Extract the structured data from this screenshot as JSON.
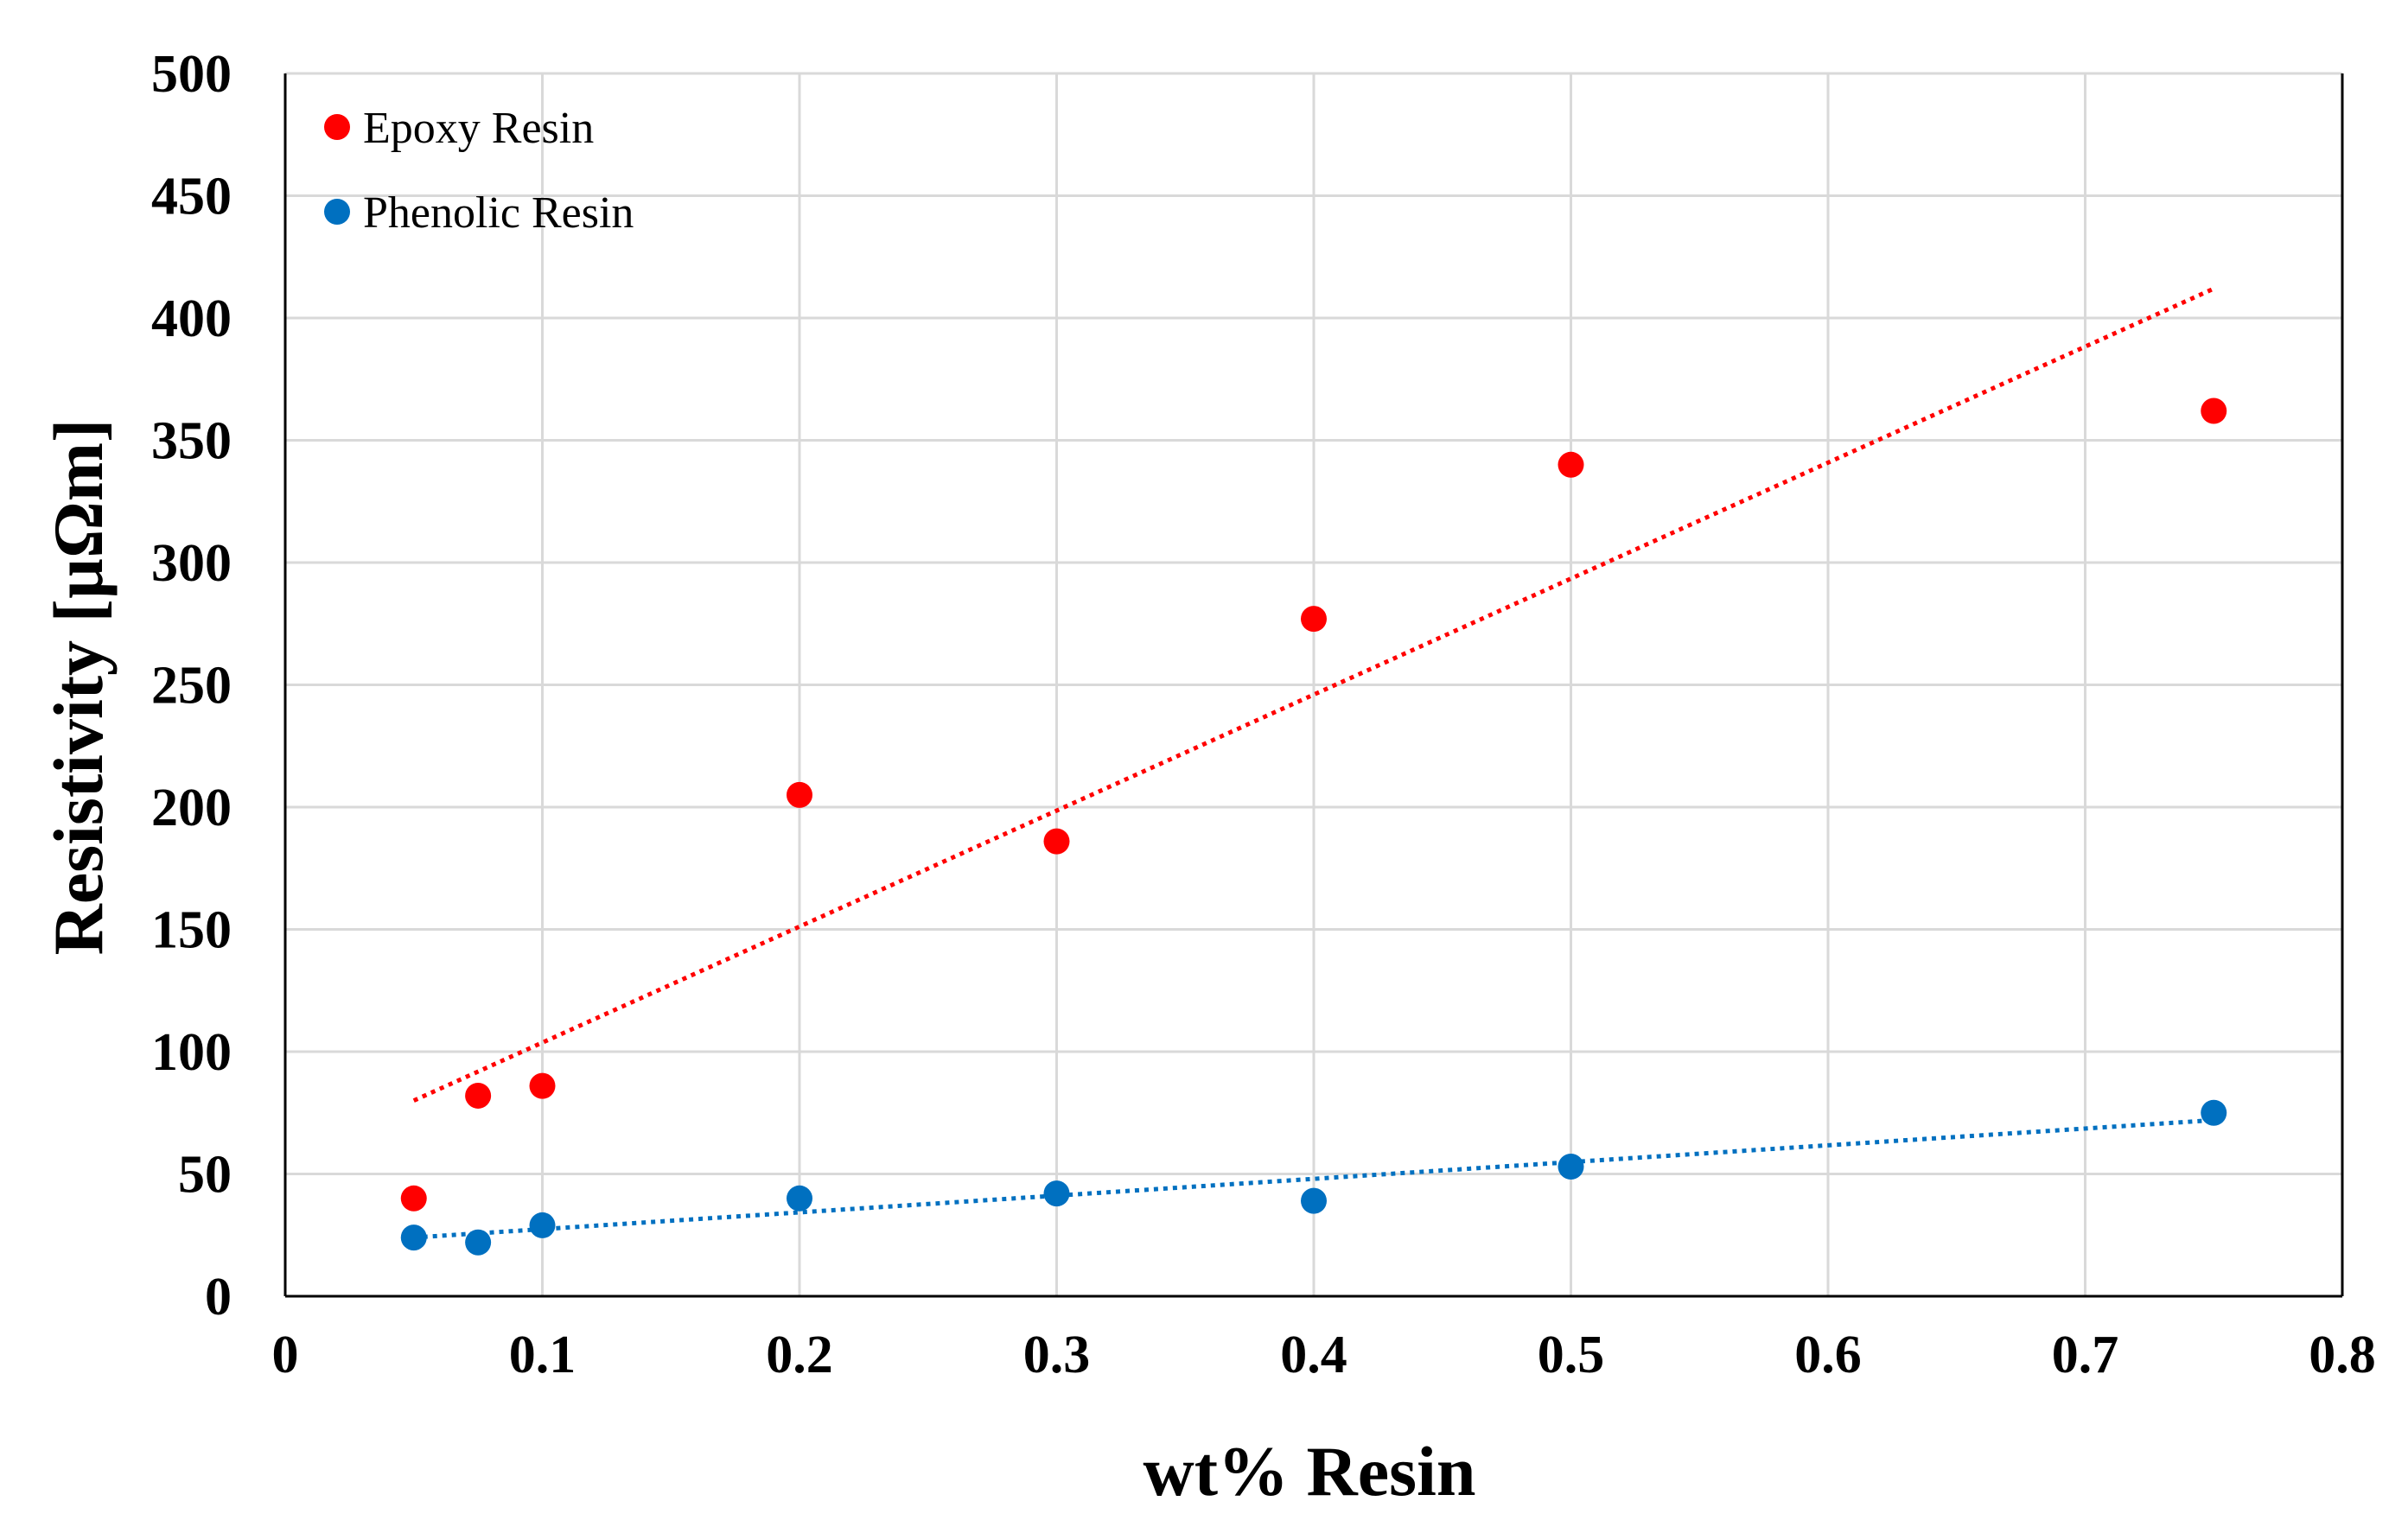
{
  "chart_data": {
    "type": "scatter",
    "title": "",
    "xlabel": "wt% Resin",
    "ylabel": "Resistivity [µΩm]",
    "xlim": [
      0,
      0.8
    ],
    "ylim": [
      0,
      500
    ],
    "x_ticks": [
      0,
      0.1,
      0.2,
      0.3,
      0.4,
      0.5,
      0.6,
      0.7,
      0.8
    ],
    "x_tick_labels": [
      "0",
      "0.1",
      "0.2",
      "0.3",
      "0.4",
      "0.5",
      "0.6",
      "0.7",
      "0.8"
    ],
    "y_ticks": [
      0,
      50,
      100,
      150,
      200,
      250,
      300,
      350,
      400,
      450,
      500
    ],
    "y_tick_labels": [
      "0",
      "50",
      "100",
      "150",
      "200",
      "250",
      "300",
      "350",
      "400",
      "450",
      "500"
    ],
    "grid": true,
    "legend_position": "top-left",
    "series": [
      {
        "name": "Epoxy Resin",
        "color": "#ff0000",
        "x": [
          0.05,
          0.075,
          0.1,
          0.2,
          0.3,
          0.4,
          0.5,
          0.75
        ],
        "y": [
          40,
          82,
          86,
          205,
          186,
          277,
          340,
          362
        ],
        "trendline": {
          "type": "linear",
          "x": [
            0.05,
            0.75
          ],
          "y": [
            80,
            412
          ]
        }
      },
      {
        "name": "Phenolic Resin",
        "color": "#0070c0",
        "x": [
          0.05,
          0.075,
          0.1,
          0.2,
          0.3,
          0.4,
          0.5,
          0.75
        ],
        "y": [
          24,
          22,
          29,
          40,
          42,
          39,
          53,
          75
        ],
        "trendline": {
          "type": "linear",
          "x": [
            0.05,
            0.75
          ],
          "y": [
            24,
            72
          ]
        }
      }
    ]
  }
}
